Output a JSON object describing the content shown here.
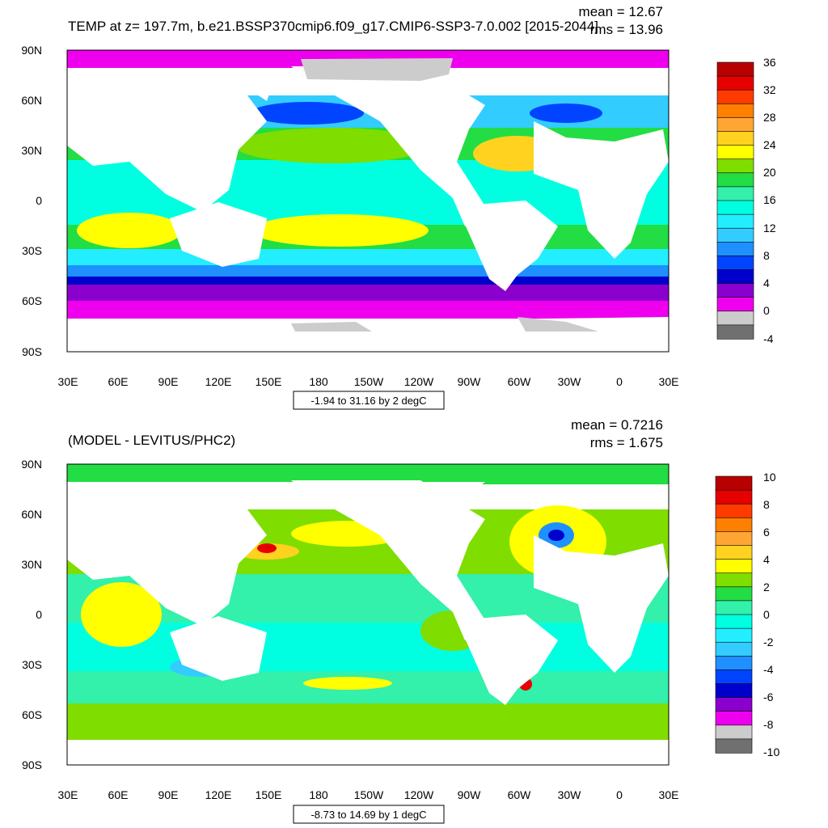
{
  "panels": [
    {
      "title": "TEMP at z= 197.7m, b.e21.BSSP370cmip6.f09_g17.CMIP6-SSP3-7.0.002 [2015-2044]",
      "mean_label": "mean = 12.67",
      "rms_label": "rms = 13.96",
      "info_label": "-1.94 to 31.16 by 2 degC",
      "colorbar_labels": [
        "36",
        "32",
        "28",
        "24",
        "20",
        "16",
        "12",
        "8",
        "4",
        "0",
        "-4"
      ],
      "colorbar_colors": [
        "#b80000",
        "#e60000",
        "#ff3b00",
        "#ff7f00",
        "#ffa533",
        "#ffd21f",
        "#ffff00",
        "#7fdd00",
        "#22dd44",
        "#33f0aa",
        "#00ffe0",
        "#22eeff",
        "#33ccff",
        "#1e90ff",
        "#0044ff",
        "#0000cc",
        "#8a00cc",
        "#ee00ee",
        "#cccccc",
        "#707070"
      ]
    },
    {
      "title": "(MODEL - LEVITUS/PHC2)",
      "mean_label": "mean = 0.7216",
      "rms_label": "rms = 1.675",
      "info_label": "-8.73 to 14.69 by 1 degC",
      "colorbar_labels": [
        "10",
        "8",
        "6",
        "4",
        "2",
        "0",
        "-2",
        "-4",
        "-6",
        "-8",
        "-10"
      ],
      "colorbar_colors": [
        "#b80000",
        "#e60000",
        "#ff3b00",
        "#ff7f00",
        "#ffa533",
        "#ffd21f",
        "#ffff00",
        "#7fdd00",
        "#22dd44",
        "#33f0aa",
        "#00ffe0",
        "#22eeff",
        "#33ccff",
        "#1e90ff",
        "#0044ff",
        "#0000cc",
        "#8a00cc",
        "#ee00ee",
        "#cccccc",
        "#707070"
      ]
    }
  ],
  "axes": {
    "lat_labels": [
      "90N",
      "60N",
      "30N",
      "0",
      "30S",
      "60S",
      "90S"
    ],
    "lon_labels": [
      "30E",
      "60E",
      "90E",
      "120E",
      "150E",
      "180",
      "150W",
      "120W",
      "90W",
      "60W",
      "30W",
      "0",
      "30E"
    ]
  }
}
